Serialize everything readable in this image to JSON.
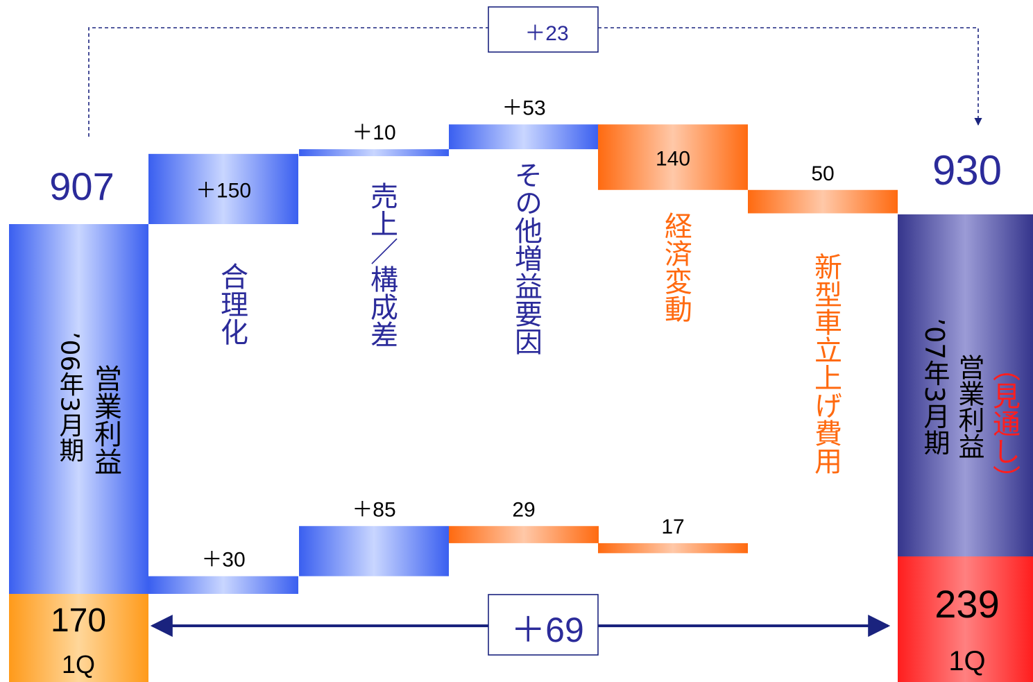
{
  "colors": {
    "blue_dark": "#3a5ff0",
    "blue_light": "#c9d6ff",
    "orange_dark": "#ff6a10",
    "orange_light": "#ffc8a8",
    "navy_dark": "#35358c",
    "navy_light": "#9b9bd6",
    "gold_dark": "#ff9a1a",
    "gold_light": "#ffd79a",
    "red_dark": "#ff1e1e",
    "red_light": "#ff8080",
    "label_navy": "#2b2b9a",
    "label_orange": "#ff6a10",
    "arrow_navy": "#1a237e"
  },
  "chart_data": {
    "type": "bar",
    "subtype": "waterfall",
    "start": {
      "label": "’06年3月期 営業利益",
      "label_lines": [
        "営業利益",
        "’06年3月期"
      ],
      "annual": 907,
      "q1": 170,
      "q1_label": "1Q"
    },
    "end": {
      "label": "’07年3月期 営業利益（見通し）",
      "label_lines": [
        "（見通し）",
        "営業利益",
        "’07年3月期"
      ],
      "annual": 930,
      "q1": 239,
      "q1_label": "1Q"
    },
    "categories": [
      "合理化",
      "売上／構成差",
      "その他増益要因",
      "経済変動",
      "新型車立上げ費用"
    ],
    "series": [
      {
        "values": [
          150,
          10,
          53,
          -140,
          -50
        ],
        "value_labels": [
          "＋150",
          "＋10",
          "＋53",
          "140",
          "50"
        ]
      },
      {
        "values": [
          30,
          85,
          -29,
          -17,
          0
        ],
        "value_labels": [
          "＋30",
          "＋85",
          "29",
          "17",
          ""
        ]
      }
    ],
    "annual_change": "＋23",
    "q1_change": "＋69"
  }
}
